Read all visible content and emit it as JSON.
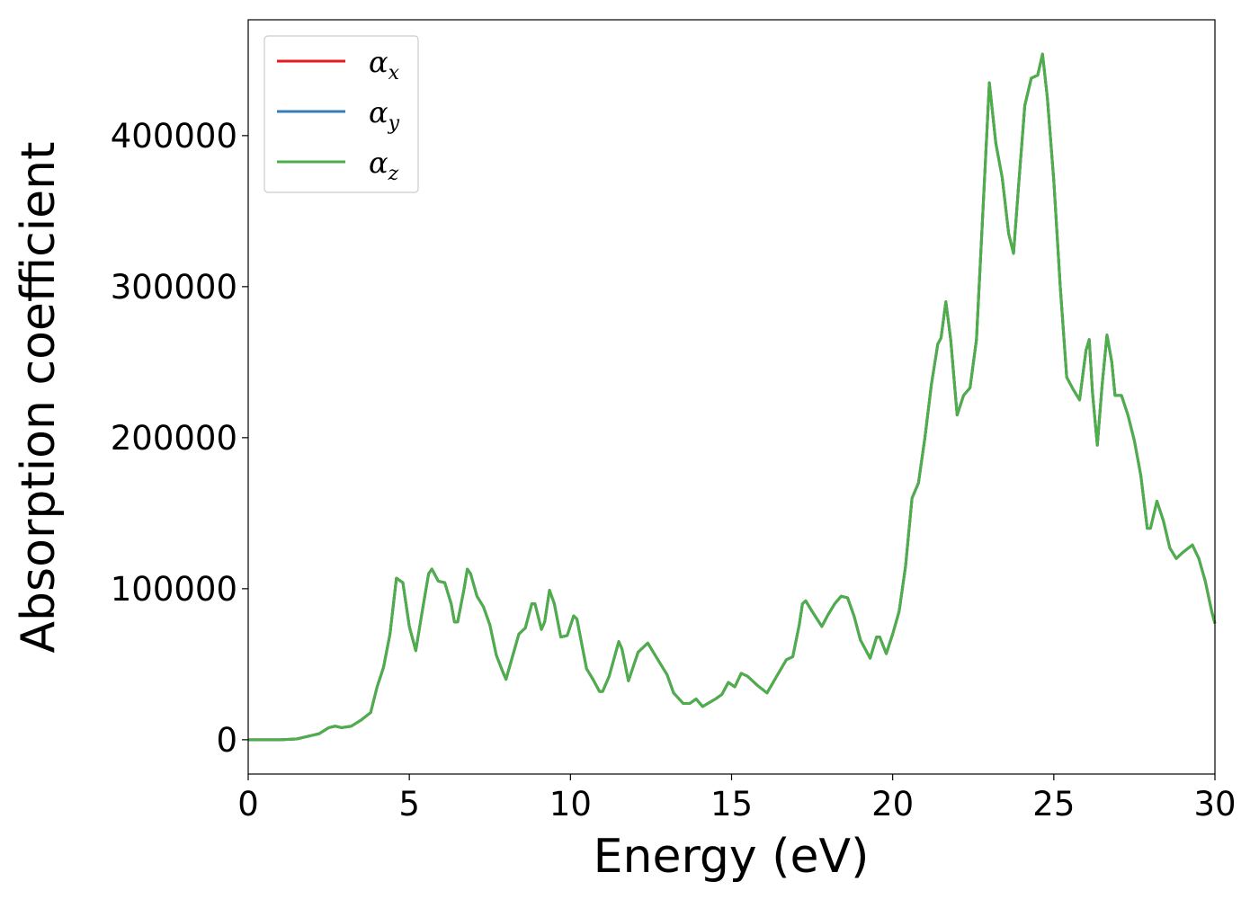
{
  "chart_data": {
    "type": "line",
    "xlabel": "Energy (eV)",
    "ylabel": "Absorption coefficient",
    "xlim": [
      0,
      30
    ],
    "ylim": [
      -22700,
      476700
    ],
    "xticks": [
      0,
      5,
      10,
      15,
      20,
      25,
      30
    ],
    "yticks": [
      0,
      100000,
      200000,
      300000,
      400000
    ],
    "legend": "upper left",
    "x": [
      0,
      1,
      1.5,
      2,
      2.2,
      2.5,
      2.7,
      2.9,
      3.2,
      3.5,
      3.8,
      4.0,
      4.2,
      4.4,
      4.6,
      4.8,
      5.0,
      5.2,
      5.4,
      5.6,
      5.7,
      5.9,
      6.1,
      6.3,
      6.4,
      6.5,
      6.7,
      6.8,
      6.9,
      7.1,
      7.3,
      7.5,
      7.7,
      7.9,
      8.0,
      8.2,
      8.4,
      8.6,
      8.8,
      8.9,
      9.1,
      9.2,
      9.35,
      9.5,
      9.7,
      9.9,
      10.1,
      10.2,
      10.5,
      10.7,
      10.9,
      11.0,
      11.2,
      11.5,
      11.6,
      11.8,
      12.1,
      12.2,
      12.4,
      12.6,
      12.8,
      13.0,
      13.2,
      13.5,
      13.7,
      13.9,
      14.1,
      14.5,
      14.7,
      14.9,
      15.1,
      15.3,
      15.5,
      15.8,
      16.1,
      16.4,
      16.7,
      16.9,
      17.1,
      17.2,
      17.3,
      17.5,
      17.8,
      18.0,
      18.2,
      18.4,
      18.6,
      18.8,
      19.0,
      19.3,
      19.5,
      19.6,
      19.8,
      20.0,
      20.2,
      20.4,
      20.6,
      20.8,
      21.0,
      21.2,
      21.4,
      21.5,
      21.65,
      21.8,
      22.0,
      22.2,
      22.4,
      22.6,
      22.8,
      23.0,
      23.2,
      23.4,
      23.6,
      23.75,
      23.9,
      24.1,
      24.3,
      24.5,
      24.65,
      24.8,
      25.0,
      25.2,
      25.4,
      25.6,
      25.8,
      26.0,
      26.1,
      26.2,
      26.35,
      26.5,
      26.65,
      26.8,
      26.9,
      27.1,
      27.3,
      27.5,
      27.7,
      27.9,
      28.0,
      28.2,
      28.4,
      28.6,
      28.8,
      29.0,
      29.3,
      29.5,
      29.7,
      29.9,
      30
    ],
    "series": [
      {
        "name": "αx",
        "color": "#e41a1c",
        "values": [
          0,
          0,
          500,
          3000,
          4000,
          8000,
          9000,
          8000,
          9000,
          13000,
          18000,
          35000,
          48000,
          70000,
          107000,
          104000,
          75000,
          59000,
          85000,
          110000,
          113000,
          105000,
          104000,
          90000,
          78000,
          78000,
          100000,
          113000,
          110000,
          95000,
          88000,
          76000,
          56000,
          45000,
          40000,
          55000,
          70000,
          74000,
          90000,
          90000,
          73000,
          78000,
          99000,
          90000,
          68000,
          69000,
          82000,
          80000,
          47000,
          40000,
          32000,
          32000,
          42000,
          65000,
          60000,
          39000,
          58000,
          60000,
          64000,
          57000,
          50000,
          43000,
          31000,
          24000,
          24000,
          27000,
          22000,
          27000,
          30000,
          38000,
          35000,
          44000,
          42000,
          36000,
          31000,
          42000,
          53000,
          55000,
          76000,
          90000,
          92000,
          85000,
          75000,
          83000,
          90000,
          95000,
          94000,
          82000,
          66000,
          54000,
          68000,
          68000,
          57000,
          70000,
          85000,
          115000,
          160000,
          170000,
          200000,
          235000,
          262000,
          266000,
          290000,
          265000,
          215000,
          228000,
          233000,
          265000,
          350000,
          435000,
          395000,
          372000,
          335000,
          322000,
          365000,
          420000,
          438000,
          440000,
          454000,
          425000,
          370000,
          300000,
          240000,
          232000,
          225000,
          258000,
          265000,
          230000,
          195000,
          235000,
          268000,
          250000,
          228000,
          228000,
          215000,
          198000,
          175000,
          140000,
          140000,
          158000,
          145000,
          127000,
          120000,
          124000,
          129000,
          120000,
          105000,
          85000,
          77000
        ]
      },
      {
        "name": "αy",
        "color": "#377eb8",
        "values": [
          0,
          0,
          500,
          3000,
          4000,
          8000,
          9000,
          8000,
          9000,
          13000,
          18000,
          35000,
          48000,
          70000,
          107000,
          104000,
          75000,
          59000,
          85000,
          110000,
          113000,
          105000,
          104000,
          90000,
          78000,
          78000,
          100000,
          113000,
          110000,
          95000,
          88000,
          76000,
          56000,
          45000,
          40000,
          55000,
          70000,
          74000,
          90000,
          90000,
          73000,
          78000,
          99000,
          90000,
          68000,
          69000,
          82000,
          80000,
          47000,
          40000,
          32000,
          32000,
          42000,
          65000,
          60000,
          39000,
          58000,
          60000,
          64000,
          57000,
          50000,
          43000,
          31000,
          24000,
          24000,
          27000,
          22000,
          27000,
          30000,
          38000,
          35000,
          44000,
          42000,
          36000,
          31000,
          42000,
          53000,
          55000,
          76000,
          90000,
          92000,
          85000,
          75000,
          83000,
          90000,
          95000,
          94000,
          82000,
          66000,
          54000,
          68000,
          68000,
          57000,
          70000,
          85000,
          115000,
          160000,
          170000,
          200000,
          235000,
          262000,
          266000,
          290000,
          265000,
          215000,
          228000,
          233000,
          265000,
          350000,
          435000,
          395000,
          372000,
          335000,
          322000,
          365000,
          420000,
          438000,
          440000,
          454000,
          425000,
          370000,
          300000,
          240000,
          232000,
          225000,
          258000,
          265000,
          230000,
          195000,
          235000,
          268000,
          250000,
          228000,
          228000,
          215000,
          198000,
          175000,
          140000,
          140000,
          158000,
          145000,
          127000,
          120000,
          124000,
          129000,
          120000,
          105000,
          85000,
          77000
        ]
      },
      {
        "name": "αz",
        "color": "#4daf4a",
        "values": [
          0,
          0,
          500,
          3000,
          4000,
          8000,
          9000,
          8000,
          9000,
          13000,
          18000,
          35000,
          48000,
          70000,
          107000,
          104000,
          75000,
          59000,
          85000,
          110000,
          113000,
          105000,
          104000,
          90000,
          78000,
          78000,
          100000,
          113000,
          110000,
          95000,
          88000,
          76000,
          56000,
          45000,
          40000,
          55000,
          70000,
          74000,
          90000,
          90000,
          73000,
          78000,
          99000,
          90000,
          68000,
          69000,
          82000,
          80000,
          47000,
          40000,
          32000,
          32000,
          42000,
          65000,
          60000,
          39000,
          58000,
          60000,
          64000,
          57000,
          50000,
          43000,
          31000,
          24000,
          24000,
          27000,
          22000,
          27000,
          30000,
          38000,
          35000,
          44000,
          42000,
          36000,
          31000,
          42000,
          53000,
          55000,
          76000,
          90000,
          92000,
          85000,
          75000,
          83000,
          90000,
          95000,
          94000,
          82000,
          66000,
          54000,
          68000,
          68000,
          57000,
          70000,
          85000,
          115000,
          160000,
          170000,
          200000,
          235000,
          262000,
          266000,
          290000,
          265000,
          215000,
          228000,
          233000,
          265000,
          350000,
          435000,
          395000,
          372000,
          335000,
          322000,
          365000,
          420000,
          438000,
          440000,
          454000,
          425000,
          370000,
          300000,
          240000,
          232000,
          225000,
          258000,
          265000,
          230000,
          195000,
          235000,
          268000,
          250000,
          228000,
          228000,
          215000,
          198000,
          175000,
          140000,
          140000,
          158000,
          145000,
          127000,
          120000,
          124000,
          129000,
          120000,
          105000,
          85000,
          77000
        ]
      }
    ]
  }
}
